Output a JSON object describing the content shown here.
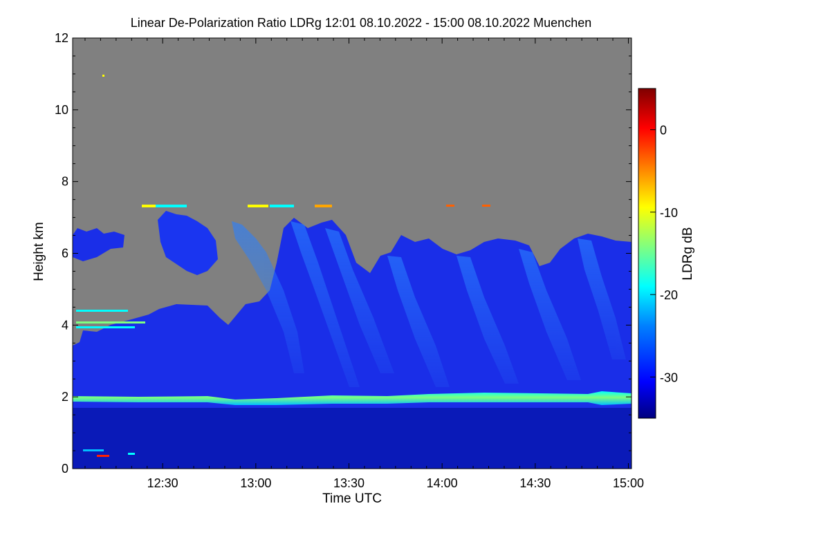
{
  "chart_data": {
    "type": "heatmap",
    "title": "Linear De-Polarization Ratio LDRg   12:01 08.10.2022 - 15:00 08.10.2022 Muenchen",
    "xlabel": "Time UTC",
    "ylabel": "Height km",
    "colorbar_label": "LDRg dB",
    "x_range": [
      "12:01",
      "15:00"
    ],
    "x_range_minutes": [
      721,
      900
    ],
    "xlim_minutes": [
      721,
      901
    ],
    "ylim": [
      0,
      12
    ],
    "clim": [
      -35,
      5
    ],
    "x_ticks": [
      {
        "label": "12:30",
        "minutes": 750
      },
      {
        "label": "13:00",
        "minutes": 780
      },
      {
        "label": "13:30",
        "minutes": 810
      },
      {
        "label": "14:00",
        "minutes": 840
      },
      {
        "label": "14:30",
        "minutes": 870
      },
      {
        "label": "15:00",
        "minutes": 900
      }
    ],
    "y_ticks": [
      0,
      2,
      4,
      6,
      8,
      10,
      12
    ],
    "colorbar_ticks": [
      0,
      -10,
      -20,
      -30
    ],
    "no_data_color": "#808080",
    "colormap": [
      "#00007f",
      "#0000ff",
      "#0080ff",
      "#00ffff",
      "#80ff80",
      "#ffff00",
      "#ff8000",
      "#ff0000",
      "#7f0000"
    ],
    "features": [
      {
        "name": "boundary-layer-top",
        "height_km": [
          1.8,
          2.0
        ],
        "ldr_db": -20
      },
      {
        "name": "below-layer",
        "height_km": [
          0,
          1.8
        ],
        "ldr_db": -33
      },
      {
        "name": "ice-cloud-fallstreaks",
        "height_km": [
          2.0,
          6.9
        ],
        "ldr_db": -28
      },
      {
        "name": "cirrus-top-line",
        "height_km": 7.3,
        "ldr_db": -12
      }
    ],
    "grid": false
  }
}
